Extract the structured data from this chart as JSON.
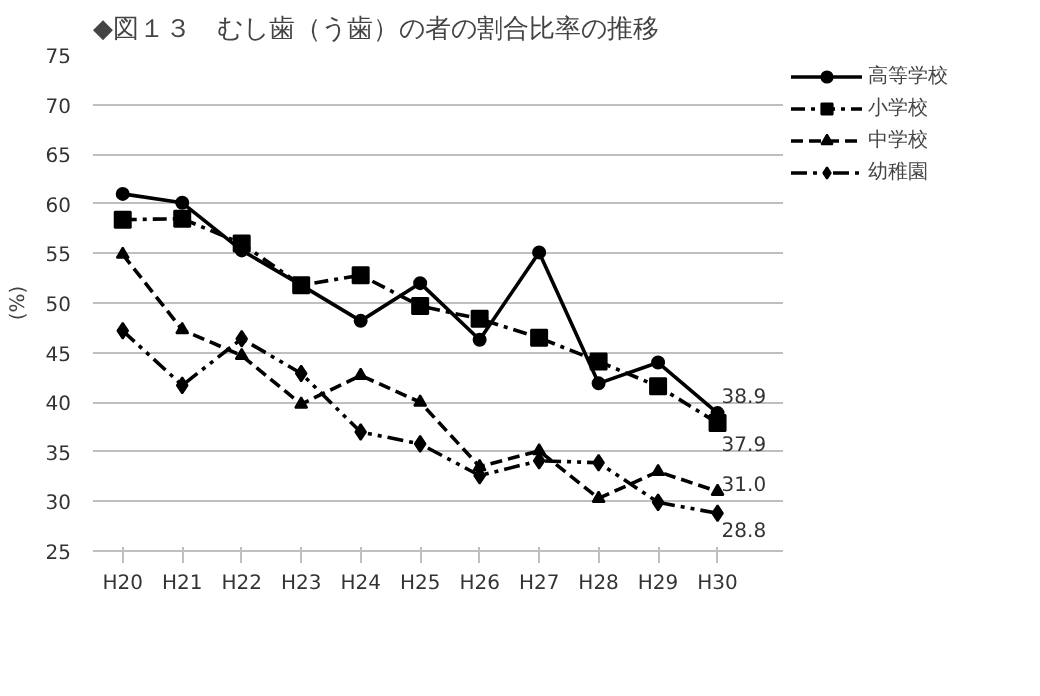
{
  "chart_data": {
    "type": "line",
    "title": "◆図１３　むし歯（う歯）の者の割合比率の推移",
    "ylabel": "(%)",
    "categories": [
      "H20",
      "H21",
      "H22",
      "H23",
      "H24",
      "H25",
      "H26",
      "H27",
      "H28",
      "H29",
      "H30"
    ],
    "series": [
      {
        "name": "高等学校",
        "color": "#000000",
        "marker": "circle",
        "line_style": "solid",
        "values": [
          61.0,
          60.1,
          55.3,
          51.8,
          48.2,
          52.0,
          46.3,
          55.1,
          41.9,
          44.0,
          38.9
        ],
        "value_labels": [
          null,
          null,
          null,
          null,
          null,
          null,
          null,
          null,
          null,
          null,
          "38.9"
        ]
      },
      {
        "name": "小学校",
        "color": "#000000",
        "marker": "square",
        "line_style": "dashdot",
        "values": [
          58.4,
          58.5,
          56.0,
          51.8,
          52.8,
          49.7,
          48.4,
          46.5,
          44.1,
          41.6,
          37.9
        ],
        "value_labels": [
          null,
          null,
          null,
          null,
          null,
          null,
          null,
          null,
          null,
          null,
          "37.9"
        ]
      },
      {
        "name": "中学校",
        "color": "#000000",
        "marker": "triangle",
        "line_style": "dashed",
        "values": [
          54.9,
          47.3,
          44.7,
          39.8,
          42.7,
          40.0,
          33.5,
          35.1,
          30.3,
          33.0,
          31.0
        ],
        "value_labels": [
          null,
          null,
          null,
          null,
          null,
          null,
          null,
          null,
          null,
          null,
          "31.0"
        ]
      },
      {
        "name": "幼稚園",
        "color": "#000000",
        "marker": "diamond",
        "line_style": "dashdotdot",
        "values": [
          47.2,
          41.7,
          46.4,
          42.9,
          37.0,
          35.8,
          32.6,
          34.1,
          33.9,
          29.9,
          28.8
        ],
        "value_labels": [
          null,
          null,
          null,
          null,
          null,
          null,
          null,
          null,
          null,
          null,
          "28.8"
        ]
      }
    ],
    "ylim": [
      25,
      75
    ],
    "yticks": [
      25,
      30,
      35,
      40,
      45,
      50,
      55,
      60,
      65,
      70,
      75
    ],
    "grid": "y",
    "legend": "top right"
  }
}
